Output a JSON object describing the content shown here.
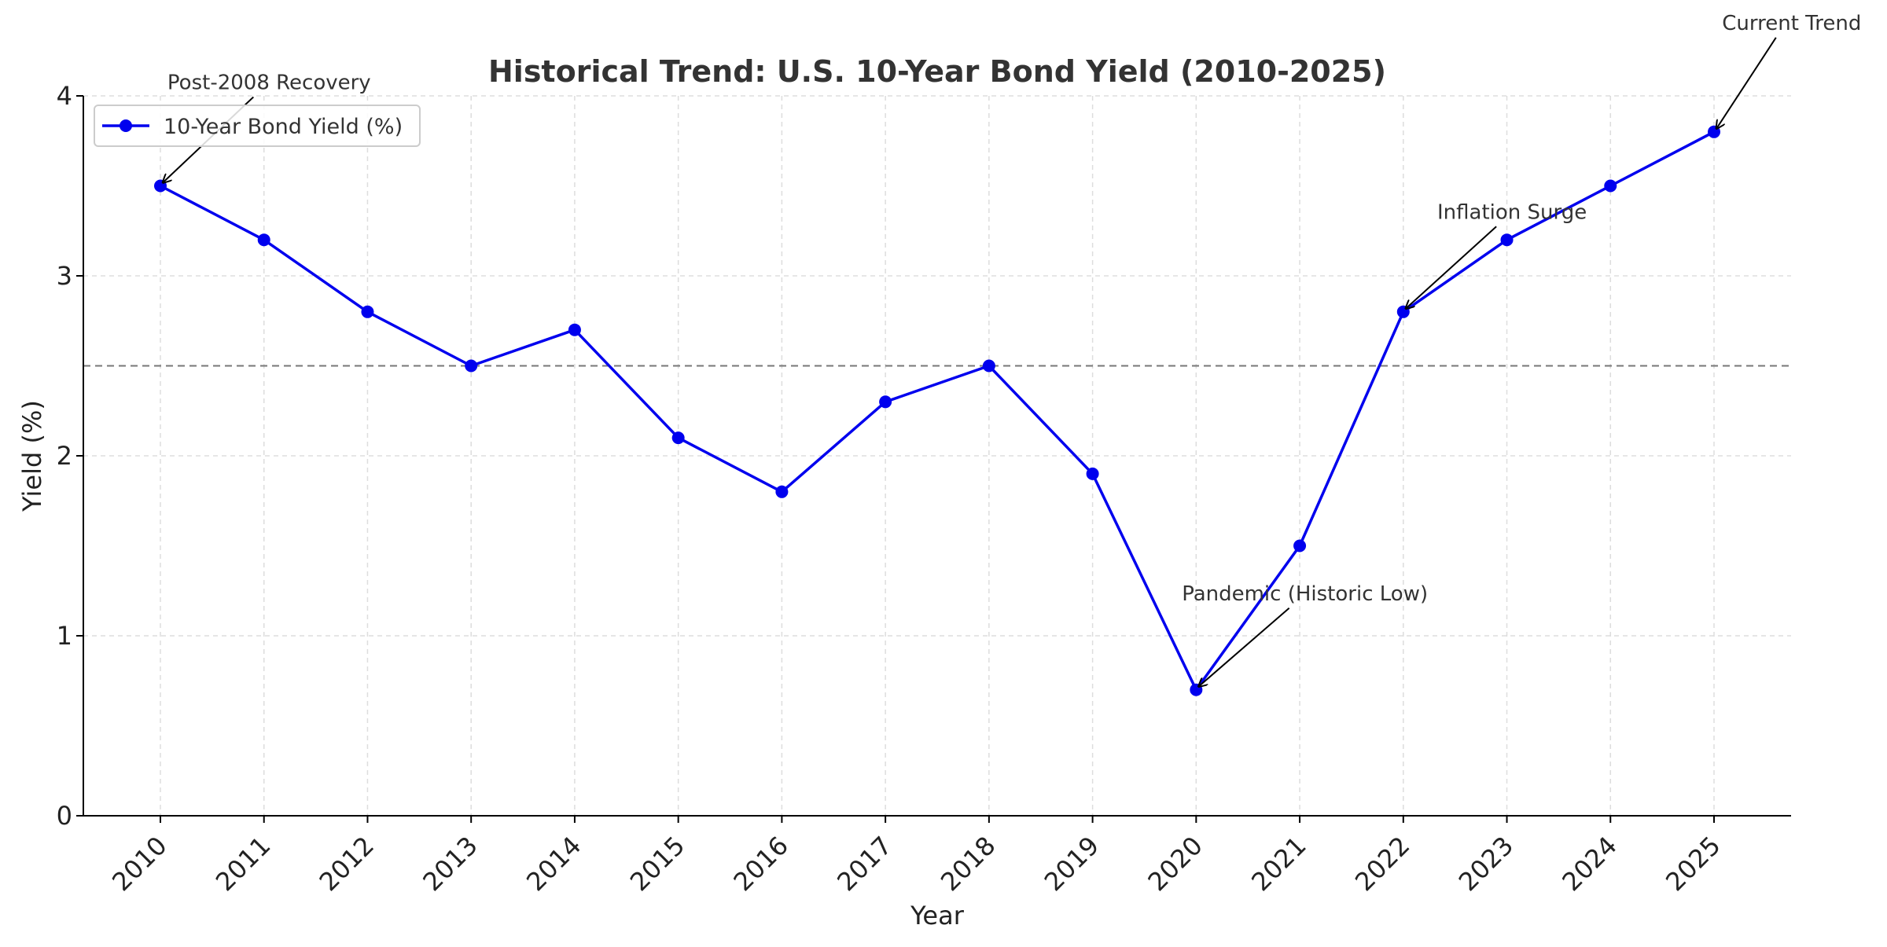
{
  "chart_data": {
    "type": "line",
    "title": "Historical Trend: U.S. 10-Year Bond Yield (2010-2025)",
    "xlabel": "Year",
    "ylabel": "Yield (%)",
    "x": [
      2010,
      2011,
      2012,
      2013,
      2014,
      2015,
      2016,
      2017,
      2018,
      2019,
      2020,
      2021,
      2022,
      2023,
      2024,
      2025
    ],
    "series": [
      {
        "name": "10-Year Bond Yield (%)",
        "values": [
          3.5,
          3.2,
          2.8,
          2.5,
          2.7,
          2.1,
          1.8,
          2.3,
          2.5,
          1.9,
          0.7,
          1.5,
          2.8,
          3.2,
          3.5,
          3.8
        ],
        "color": "#0000ee"
      }
    ],
    "ylim": [
      0,
      4
    ],
    "yticks": [
      0,
      1,
      2,
      3,
      4
    ],
    "reference_line": {
      "y": 2.5,
      "style": "dashed",
      "color": "#777777"
    },
    "grid": true,
    "legend_position": "top-left",
    "annotations": [
      {
        "text": "Post-2008 Recovery",
        "x": 2010,
        "y": 3.5
      },
      {
        "text": "Pandemic (Historic Low)",
        "x": 2020,
        "y": 0.7
      },
      {
        "text": "Inflation Surge",
        "x": 2022,
        "y": 2.8
      },
      {
        "text": "Current Trend",
        "x": 2025,
        "y": 3.8
      }
    ]
  }
}
